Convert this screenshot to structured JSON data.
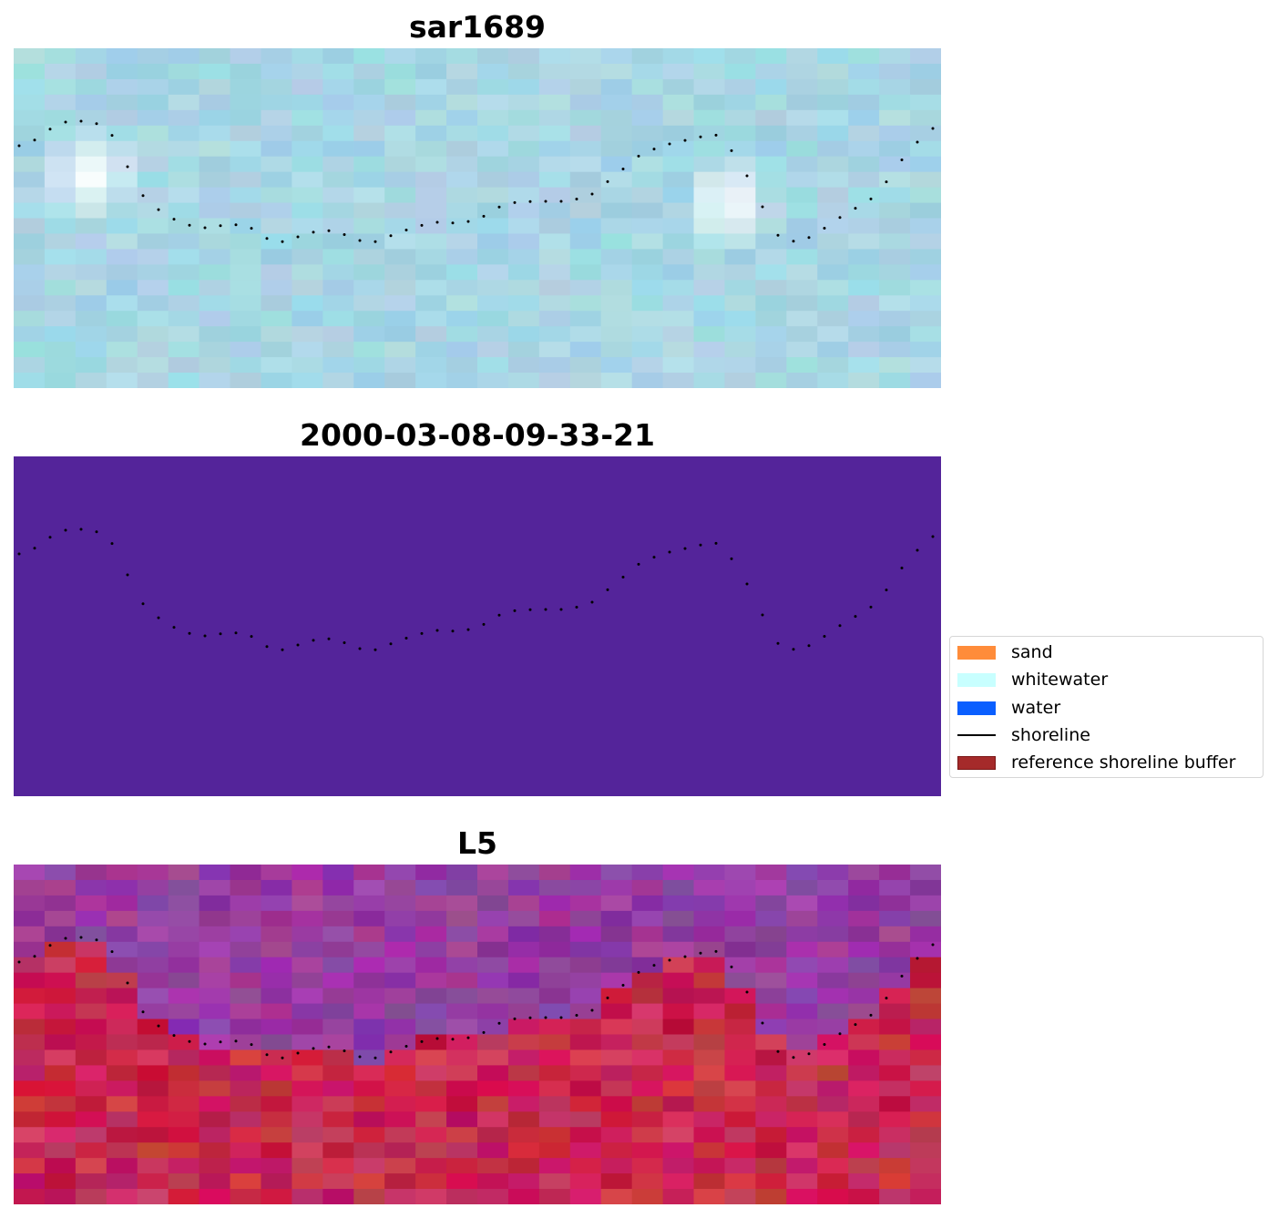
{
  "panels": [
    {
      "title": "sar1689"
    },
    {
      "title": "2000-03-08-09-33-21"
    },
    {
      "title": "L5"
    }
  ],
  "classification_fill": "#54249a",
  "legend": [
    {
      "label": "sand",
      "color": "#ff8c3a",
      "kind": "patch"
    },
    {
      "label": "whitewater",
      "color": "#c8ffff",
      "kind": "patch"
    },
    {
      "label": "water",
      "color": "#0a5fff",
      "kind": "patch"
    },
    {
      "label": "shoreline",
      "color": "#000000",
      "kind": "line"
    },
    {
      "label": "reference shoreline buffer",
      "color": "#a52a2a",
      "kind": "patch"
    }
  ]
}
